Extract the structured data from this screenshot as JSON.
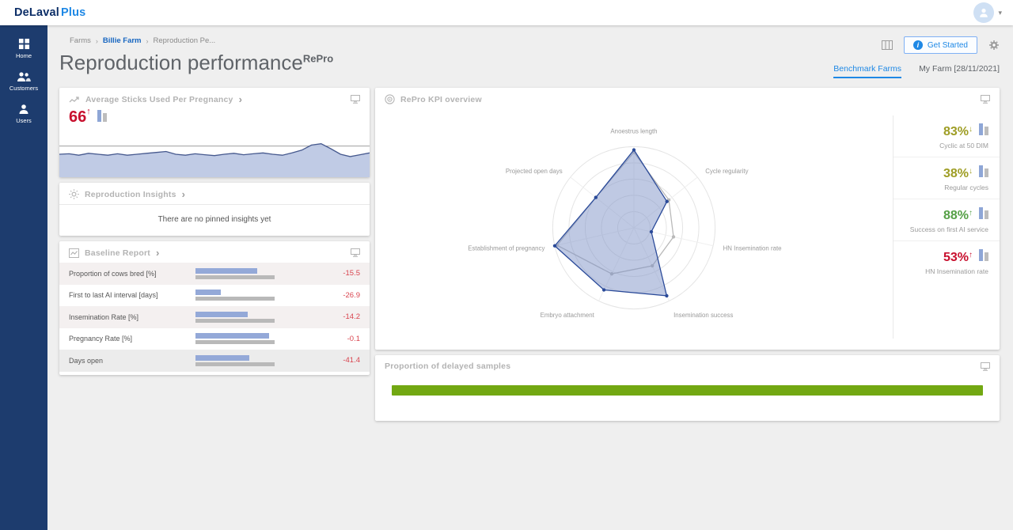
{
  "topbar": {
    "brand_primary": "DeLaval",
    "brand_secondary": "Plus"
  },
  "sidebar": {
    "items": [
      {
        "label": "Home",
        "icon": "home-grid-icon"
      },
      {
        "label": "Customers",
        "icon": "customers-icon"
      },
      {
        "label": "Users",
        "icon": "users-icon"
      }
    ]
  },
  "header": {
    "breadcrumb": [
      {
        "label": "Farms",
        "emphasis": false
      },
      {
        "label": "Billie Farm",
        "emphasis": true
      },
      {
        "label": "Reproduction Pe...",
        "emphasis": false
      }
    ],
    "title": "Reproduction performance",
    "title_superscript": "RePro",
    "get_started_label": "Get Started",
    "tabs": [
      {
        "label": "Benchmark Farms",
        "active": true
      },
      {
        "label": "My Farm [28/11/2021]",
        "active": false
      }
    ]
  },
  "cards": {
    "avg_sticks": {
      "title": "Average Sticks Used Per Pregnancy",
      "value": "66",
      "trend": "up",
      "value_color": "#c8102e"
    },
    "insights": {
      "title": "Reproduction Insights",
      "empty_message": "There are no pinned insights yet"
    },
    "baseline": {
      "title": "Baseline Report",
      "rows": [
        {
          "label": "Proportion of cows bred [%]",
          "value": "-15.5",
          "farm_pct": 78,
          "bench_pct": 100
        },
        {
          "label": "First to last AI interval [days]",
          "value": "-26.9",
          "farm_pct": 32,
          "bench_pct": 100
        },
        {
          "label": "Insemination Rate [%]",
          "value": "-14.2",
          "farm_pct": 66,
          "bench_pct": 100
        },
        {
          "label": "Pregnancy Rate [%]",
          "value": "-0.1",
          "farm_pct": 93,
          "bench_pct": 100
        },
        {
          "label": "Days open",
          "value": "-41.4",
          "farm_pct": 68,
          "bench_pct": 100
        }
      ]
    },
    "kpi_overview": {
      "title": "RePro KPI overview",
      "stats": [
        {
          "value": "83%",
          "trend": "down",
          "label": "Cyclic at 50 DIM",
          "color": "#9e9d24"
        },
        {
          "value": "38%",
          "trend": "down",
          "label": "Regular cycles",
          "color": "#9e9d24"
        },
        {
          "value": "88%",
          "trend": "up",
          "label": "Success on first AI service",
          "color": "#55a046"
        },
        {
          "value": "53%",
          "trend": "up",
          "label": "HN Insemination rate",
          "color": "#c8102e"
        }
      ]
    },
    "delayed": {
      "title": "Proportion of delayed samples",
      "bar_pct": 100,
      "bar_color": "#72a812"
    }
  },
  "icons": {
    "home-grid-icon": "app grid",
    "customers-icon": "two people",
    "users-icon": "person",
    "trend-icon": "line chart with arrow",
    "insights-icon": "idea rays",
    "baseline-report-icon": "framed line chart",
    "kpi-overview-icon": "concentric target",
    "monitor-icon": "screen display",
    "view-columns-icon": "table columns",
    "gear-icon": "settings gear",
    "info-icon": "info circle",
    "chevron-right-icon": "›",
    "chevron-down-icon": "▾",
    "arrow-up": "↑",
    "arrow-down": "↓"
  },
  "chart_data": [
    {
      "type": "area",
      "name": "average-sticks-trend",
      "title": "Average Sticks Used Per Pregnancy",
      "x_range": [
        0,
        1
      ],
      "y_normalized": [
        0.5,
        0.49,
        0.52,
        0.48,
        0.5,
        0.52,
        0.49,
        0.52,
        0.5,
        0.48,
        0.46,
        0.44,
        0.5,
        0.52,
        0.49,
        0.51,
        0.53,
        0.5,
        0.48,
        0.51,
        0.49,
        0.47,
        0.5,
        0.52,
        0.47,
        0.41,
        0.3,
        0.27,
        0.38,
        0.5,
        0.55,
        0.51,
        0.47
      ],
      "reference_y": 0.32,
      "line_color": "#46598e",
      "fill_color": "rgba(185,197,226,0.9)",
      "reference_color": "#9e9e9e",
      "grid": false
    },
    {
      "type": "radar",
      "name": "repro-kpi-radar",
      "title": "RePro KPI overview",
      "axes": [
        "Anoestrus length",
        "Cycle regularity",
        "HN Insemination rate",
        "Insemination success",
        "Embryo attachment",
        "Establishment of pregnancy",
        "Projected open days"
      ],
      "scale": [
        0,
        1
      ],
      "rings": [
        0.2,
        0.4,
        0.6,
        0.8,
        1.0
      ],
      "series": [
        {
          "name": "Benchmark",
          "values": [
            0.93,
            0.55,
            0.5,
            0.52,
            0.63,
            0.97,
            0.6
          ],
          "color": "#b9b9b9",
          "fill": "none"
        },
        {
          "name": "My Farm",
          "values": [
            0.96,
            0.52,
            0.22,
            0.93,
            0.85,
            1.0,
            0.6
          ],
          "color": "#2a4a99",
          "fill": "rgba(127,148,199,0.5)"
        }
      ],
      "legend_position": "none"
    },
    {
      "type": "bar",
      "name": "delayed-samples-bar",
      "title": "Proportion of delayed samples",
      "categories": [
        "Proportion of delayed samples"
      ],
      "values": [
        100
      ],
      "xlim": [
        0,
        100
      ],
      "color": "#72a812"
    }
  ]
}
